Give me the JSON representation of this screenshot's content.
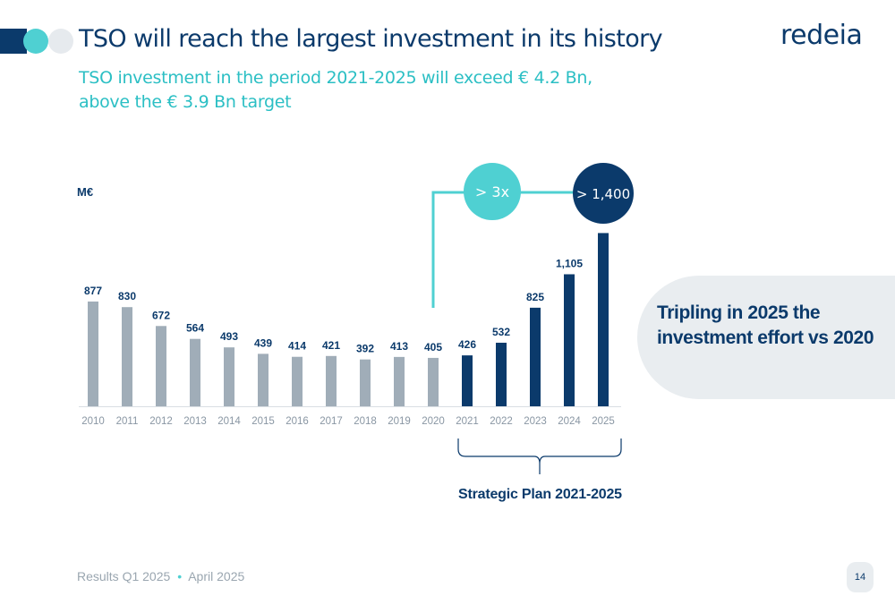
{
  "header": {
    "title": "TSO will reach the largest investment in its history",
    "subtitle_line1": "TSO investment in the period 2021-2025 will exceed € 4.2 Bn,",
    "subtitle_line2": "above the € 3.9 Bn target"
  },
  "brand": {
    "logo_text": "redeia"
  },
  "colors": {
    "navy": "#0b3a6b",
    "teal": "#4fd0d2",
    "grey_bar": "#a0adb8",
    "panel": "#e9edf0"
  },
  "chart_data": {
    "type": "bar",
    "unit_label": "M€",
    "categories": [
      "2010",
      "2011",
      "2012",
      "2013",
      "2014",
      "2015",
      "2016",
      "2017",
      "2018",
      "2019",
      "2020",
      "2021",
      "2022",
      "2023",
      "2024",
      "2025"
    ],
    "values": [
      877,
      830,
      672,
      564,
      493,
      439,
      414,
      421,
      392,
      413,
      405,
      426,
      532,
      825,
      1105,
      1450
    ],
    "data_labels": [
      "877",
      "830",
      "672",
      "564",
      "493",
      "439",
      "414",
      "421",
      "392",
      "413",
      "405",
      "426",
      "532",
      "825",
      "1,105",
      ""
    ],
    "highlight_from_index": 11,
    "annotations": {
      "growth_bubble": "> 3x",
      "target_bubble": "> 1,400"
    },
    "grid": false
  },
  "side_panel": {
    "line1": "Tripling in 2025 the",
    "line2": "investment effort vs 2020"
  },
  "plan_label": "Strategic Plan 2021-2025",
  "footer": {
    "text_left": "Results Q1 2025",
    "separator": "•",
    "text_right": "April 2025",
    "page_number": "14"
  }
}
